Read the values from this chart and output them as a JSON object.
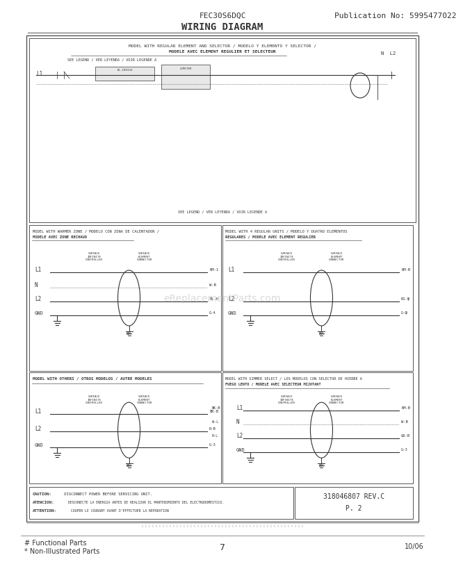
{
  "title_model": "FEC30S6DQC",
  "title_pub": "Publication No: 5995477022",
  "title_diagram": "WIRING DIAGRAM",
  "footer_left1": "# Functional Parts",
  "footer_left2": "* Non-Illustrated Parts",
  "footer_center": "7",
  "footer_right": "10/06",
  "bg_color": "#ffffff",
  "border_color": "#555555",
  "diagram_color": "#333333",
  "caution_text1": "CAUTION: DISCONNECT POWER BEFORE SERVICING UNIT.",
  "caution_text2": "ATENCION: DESCONECTE LA ENERGIA ANTES DE REALIZAR EL MANTENIMIENTO DEL ELECTRODOMESTICO.",
  "caution_text3": "ATTENTION: COUPER LE COURANT AVANT D'EFFECTUER LA REPARATION",
  "rev_text": "318046807 REV.C",
  "rev_text2": "P. 2"
}
